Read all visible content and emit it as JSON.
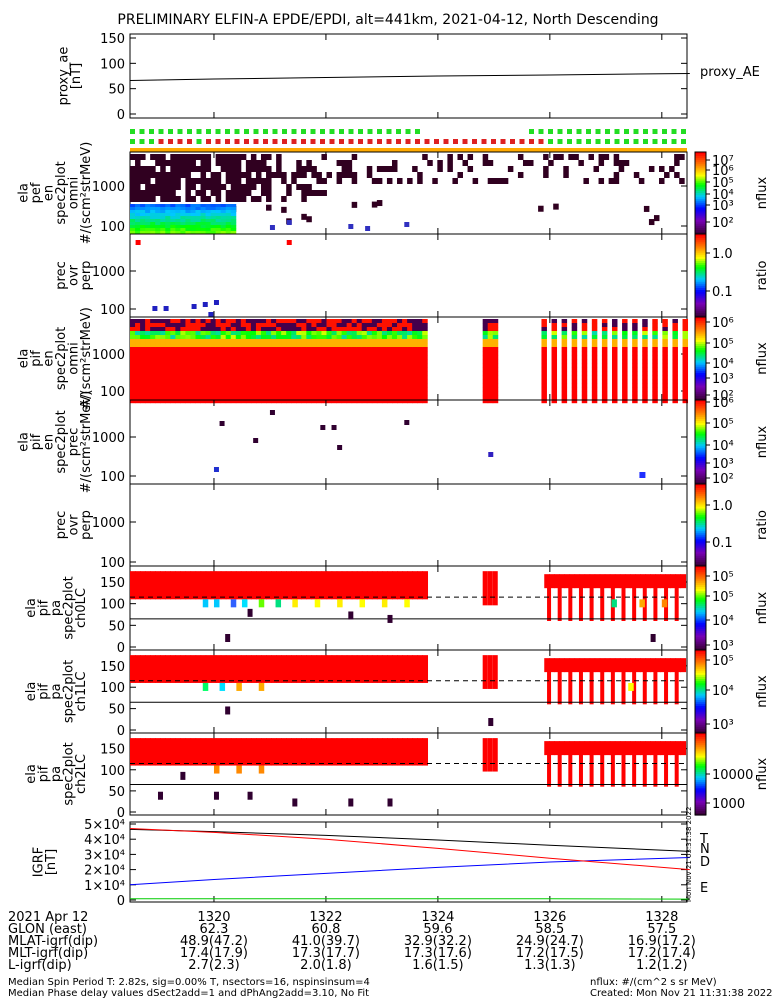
{
  "title": "PRELIMINARY ELFIN-A EPDE/EPDI, alt=441km, 2021-04-12, North Descending",
  "panels": [
    {
      "id": "proxy_ae",
      "ylabel": [
        "proxy_ae",
        "[nT]"
      ],
      "yticks": [
        "150",
        "100",
        "50",
        "0"
      ],
      "right_label": "proxy_AE"
    },
    {
      "id": "epde_omni",
      "ylabel": [
        "ela",
        "pef",
        "en",
        "spec2plot",
        "omni",
        "#/(scm²strMeV)"
      ],
      "yticks": [
        "1000",
        "100"
      ],
      "cbar_ticks": [
        "10⁷",
        "10⁶",
        "10⁵",
        "10⁴",
        "10³",
        "10²"
      ],
      "cbar_label": "nflux"
    },
    {
      "id": "epde_ratio",
      "ylabel": [
        "prec",
        "ovr",
        "perp"
      ],
      "yticks": [
        "1000",
        "100"
      ],
      "cbar_ticks": [
        "1.0",
        "0.1"
      ],
      "cbar_label": "ratio"
    },
    {
      "id": "epdi_omni",
      "ylabel": [
        "ela",
        "pif",
        "en",
        "spec2plot",
        "omni",
        "#/(scm²strMeV)"
      ],
      "yticks": [
        "1000",
        "100"
      ],
      "cbar_ticks": [
        "10⁶",
        "10⁵",
        "10⁴",
        "10³",
        "10²"
      ],
      "cbar_label": "nflux"
    },
    {
      "id": "epdi_prec",
      "ylabel": [
        "ela",
        "pif",
        "en",
        "spec2plot",
        "prec",
        "#/(scm²strMeV)"
      ],
      "yticks": [
        "1000",
        "100"
      ],
      "cbar_ticks": [
        "10⁶",
        "10⁵",
        "10⁴",
        "10³",
        "10²"
      ],
      "cbar_label": "nflux"
    },
    {
      "id": "epdi_ratio",
      "ylabel": [
        "prec",
        "ovr",
        "perp"
      ],
      "yticks": [
        "1000",
        "100"
      ],
      "cbar_ticks": [
        "1.0",
        "0.1"
      ],
      "cbar_label": "ratio"
    },
    {
      "id": "pa_ch0",
      "ylabel": [
        "ela",
        "pif",
        "pa",
        "spec2plot",
        "ch0LC"
      ],
      "yticks": [
        "150",
        "100",
        "50",
        "0"
      ],
      "cbar_ticks": [
        "10⁵",
        "10⁵",
        "10⁴",
        "10³"
      ],
      "cbar_label": "nflux"
    },
    {
      "id": "pa_ch1",
      "ylabel": [
        "ela",
        "pif",
        "pa",
        "spec2plot",
        "ch1LC"
      ],
      "yticks": [
        "150",
        "100",
        "50",
        "0"
      ],
      "cbar_ticks": [
        "10⁵",
        "10⁴",
        "10³"
      ],
      "cbar_label": "nflux"
    },
    {
      "id": "pa_ch2",
      "ylabel": [
        "ela",
        "pif",
        "pa",
        "spec2plot",
        "ch2LC"
      ],
      "yticks": [
        "150",
        "100",
        "50",
        "0"
      ],
      "cbar_ticks": [
        "10000",
        "1000"
      ],
      "cbar_label": "nflux"
    },
    {
      "id": "igrf",
      "ylabel": [
        "IGRF",
        "[nT]"
      ],
      "yticks": [
        "5×10⁴",
        "4×10⁴",
        "3×10⁴",
        "2×10⁴",
        "1×10⁴",
        "0"
      ],
      "legend": [
        "T",
        "N",
        "D",
        "E"
      ]
    }
  ],
  "created_vertical": "Mon Nov 21 03:31:38 2022",
  "footer": {
    "x_rows": [
      {
        "label": "2021 Apr 12",
        "values": [
          "1320",
          "1322",
          "1324",
          "1326",
          "1328"
        ]
      },
      {
        "label": "GLON (east)",
        "values": [
          "62.3",
          "60.8",
          "59.6",
          "58.5",
          "57.5"
        ]
      },
      {
        "label": "MLAT-igrf(dip)",
        "values": [
          "48.9(47.2)",
          "41.0(39.7)",
          "32.9(32.2)",
          "24.9(24.7)",
          "16.9(17.2)"
        ]
      },
      {
        "label": "MLT-igrf(dip)",
        "values": [
          "17.4(17.9)",
          "17.3(17.7)",
          "17.3(17.6)",
          "17.2(17.5)",
          "17.2(17.4)"
        ]
      },
      {
        "label": "L-igrf(dip)",
        "values": [
          "2.7(2.3)",
          "2.0(1.8)",
          "1.6(1.5)",
          "1.3(1.3)",
          "1.2(1.2)"
        ]
      }
    ],
    "note1": "Median Spin Period T: 2.82s, sig=0.00% T, nsectors=16, nspinsinsum=4",
    "note2": "Median Phase delay values dSect2add=1 and dPhAng2add=3.10, No Fit",
    "units": "nflux: #/(cm^2 s sr MeV)",
    "created": "Created: Mon Nov 21 11:31:38 2022"
  },
  "chart_data": [
    {
      "type": "line",
      "panel": "proxy_ae",
      "x": [
        1318.5,
        1320,
        1322,
        1324,
        1326,
        1328.5
      ],
      "values": [
        66,
        69,
        72,
        75,
        77,
        80
      ],
      "ylim": [
        0,
        150
      ]
    },
    {
      "type": "heatmap",
      "panel": "epde_omni",
      "note": "high flux (blue/green) at energies below ~200 keV from 1318.5 to 1320.3; sparse low counts above"
    },
    {
      "type": "heatmap",
      "panel": "epdi_omni",
      "note": "saturated red flux 1318.5-1323.8 and 1325.8-1328.4, data gap 1323.8-1325.8"
    },
    {
      "type": "heatmap",
      "panel": "pa_ch0",
      "ylim": [
        0,
        180
      ],
      "note": "high flux at pitch angles 100-180 deg, dashed loss-cone line near 115"
    },
    {
      "type": "line",
      "panel": "igrf",
      "x": [
        1318.5,
        1320,
        1322,
        1324,
        1326,
        1328.5
      ],
      "series": [
        {
          "name": "T",
          "values": [
            46500,
            45000,
            42500,
            39500,
            36000,
            32000
          ]
        },
        {
          "name": "N",
          "values": [
            10000,
            13500,
            17500,
            21500,
            25000,
            28000
          ]
        },
        {
          "name": "D",
          "values": [
            47000,
            44500,
            40000,
            34000,
            27500,
            20000
          ]
        },
        {
          "name": "E",
          "values": [
            800,
            800,
            800,
            800,
            800,
            600
          ]
        }
      ],
      "ylim": [
        0,
        50000
      ]
    }
  ]
}
